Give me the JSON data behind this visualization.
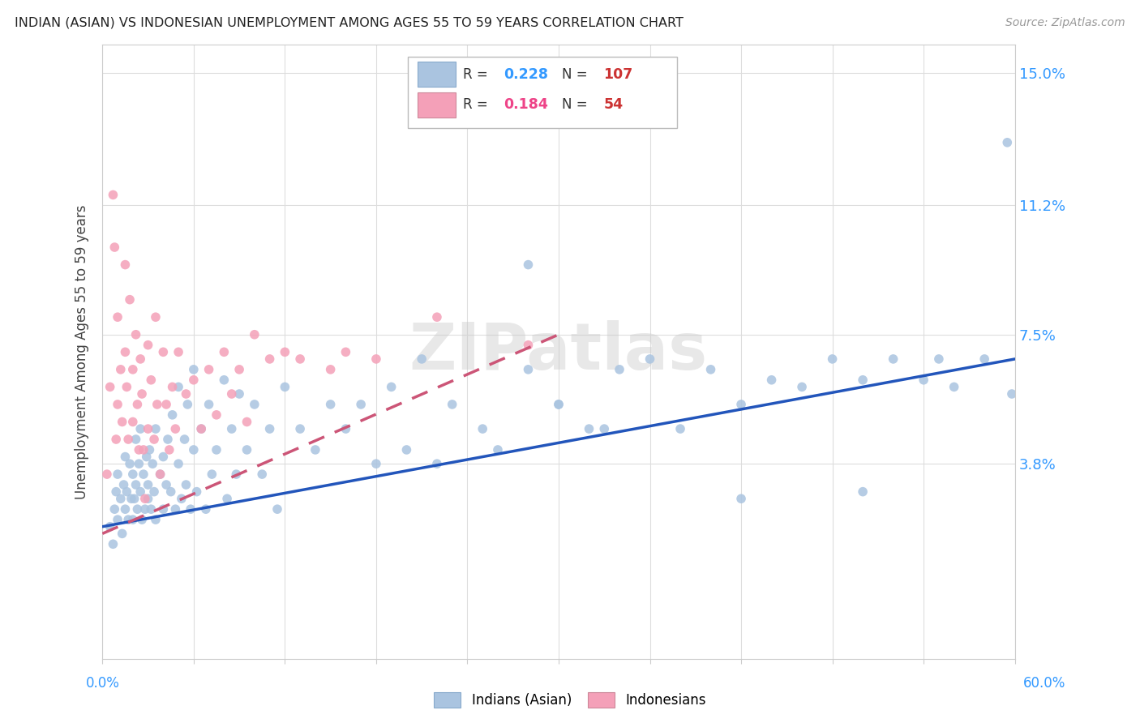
{
  "title": "INDIAN (ASIAN) VS INDONESIAN UNEMPLOYMENT AMONG AGES 55 TO 59 YEARS CORRELATION CHART",
  "source": "Source: ZipAtlas.com",
  "ylabel": "Unemployment Among Ages 55 to 59 years",
  "ytick_labels": [
    "15.0%",
    "11.2%",
    "7.5%",
    "3.8%"
  ],
  "ytick_values": [
    0.15,
    0.112,
    0.075,
    0.038
  ],
  "xlim": [
    0.0,
    0.6
  ],
  "ylim": [
    -0.018,
    0.158
  ],
  "indian_color": "#aac4e0",
  "indonesian_color": "#f4a0b8",
  "indian_line_color": "#2255bb",
  "indonesian_line_color": "#cc5577",
  "watermark": "ZIPatlas",
  "grid_color": "#dddddd",
  "background_color": "#ffffff",
  "indian_line_x": [
    0.0,
    0.6
  ],
  "indian_line_y": [
    0.02,
    0.068
  ],
  "indonesian_line_x": [
    0.0,
    0.3
  ],
  "indonesian_line_y": [
    0.018,
    0.075
  ],
  "indian_x": [
    0.005,
    0.007,
    0.008,
    0.009,
    0.01,
    0.01,
    0.012,
    0.013,
    0.014,
    0.015,
    0.015,
    0.016,
    0.017,
    0.018,
    0.019,
    0.02,
    0.02,
    0.021,
    0.022,
    0.022,
    0.023,
    0.024,
    0.025,
    0.025,
    0.026,
    0.027,
    0.028,
    0.029,
    0.03,
    0.03,
    0.031,
    0.032,
    0.033,
    0.034,
    0.035,
    0.035,
    0.038,
    0.04,
    0.04,
    0.042,
    0.043,
    0.045,
    0.046,
    0.048,
    0.05,
    0.05,
    0.052,
    0.054,
    0.055,
    0.056,
    0.058,
    0.06,
    0.06,
    0.062,
    0.065,
    0.068,
    0.07,
    0.072,
    0.075,
    0.08,
    0.082,
    0.085,
    0.088,
    0.09,
    0.095,
    0.1,
    0.105,
    0.11,
    0.115,
    0.12,
    0.13,
    0.14,
    0.15,
    0.16,
    0.17,
    0.18,
    0.19,
    0.2,
    0.21,
    0.22,
    0.23,
    0.25,
    0.26,
    0.28,
    0.3,
    0.32,
    0.34,
    0.36,
    0.38,
    0.4,
    0.42,
    0.44,
    0.46,
    0.48,
    0.5,
    0.52,
    0.54,
    0.56,
    0.58,
    0.595,
    0.598,
    0.3,
    0.28,
    0.33,
    0.5,
    0.42,
    0.55
  ],
  "indian_y": [
    0.02,
    0.015,
    0.025,
    0.03,
    0.022,
    0.035,
    0.028,
    0.018,
    0.032,
    0.025,
    0.04,
    0.03,
    0.022,
    0.038,
    0.028,
    0.035,
    0.022,
    0.028,
    0.032,
    0.045,
    0.025,
    0.038,
    0.03,
    0.048,
    0.022,
    0.035,
    0.025,
    0.04,
    0.032,
    0.028,
    0.042,
    0.025,
    0.038,
    0.03,
    0.048,
    0.022,
    0.035,
    0.04,
    0.025,
    0.032,
    0.045,
    0.03,
    0.052,
    0.025,
    0.038,
    0.06,
    0.028,
    0.045,
    0.032,
    0.055,
    0.025,
    0.042,
    0.065,
    0.03,
    0.048,
    0.025,
    0.055,
    0.035,
    0.042,
    0.062,
    0.028,
    0.048,
    0.035,
    0.058,
    0.042,
    0.055,
    0.035,
    0.048,
    0.025,
    0.06,
    0.048,
    0.042,
    0.055,
    0.048,
    0.055,
    0.038,
    0.06,
    0.042,
    0.068,
    0.038,
    0.055,
    0.048,
    0.042,
    0.095,
    0.055,
    0.048,
    0.065,
    0.068,
    0.048,
    0.065,
    0.055,
    0.062,
    0.06,
    0.068,
    0.062,
    0.068,
    0.062,
    0.06,
    0.068,
    0.13,
    0.058,
    0.055,
    0.065,
    0.048,
    0.03,
    0.028,
    0.068
  ],
  "indonesian_x": [
    0.003,
    0.005,
    0.007,
    0.008,
    0.009,
    0.01,
    0.01,
    0.012,
    0.013,
    0.015,
    0.015,
    0.016,
    0.017,
    0.018,
    0.02,
    0.02,
    0.022,
    0.023,
    0.024,
    0.025,
    0.026,
    0.027,
    0.028,
    0.03,
    0.03,
    0.032,
    0.034,
    0.035,
    0.036,
    0.038,
    0.04,
    0.042,
    0.044,
    0.046,
    0.048,
    0.05,
    0.055,
    0.06,
    0.065,
    0.07,
    0.075,
    0.08,
    0.085,
    0.09,
    0.095,
    0.1,
    0.11,
    0.12,
    0.13,
    0.15,
    0.16,
    0.18,
    0.22,
    0.28
  ],
  "indonesian_y": [
    0.035,
    0.06,
    0.115,
    0.1,
    0.045,
    0.08,
    0.055,
    0.065,
    0.05,
    0.095,
    0.07,
    0.06,
    0.045,
    0.085,
    0.065,
    0.05,
    0.075,
    0.055,
    0.042,
    0.068,
    0.058,
    0.042,
    0.028,
    0.072,
    0.048,
    0.062,
    0.045,
    0.08,
    0.055,
    0.035,
    0.07,
    0.055,
    0.042,
    0.06,
    0.048,
    0.07,
    0.058,
    0.062,
    0.048,
    0.065,
    0.052,
    0.07,
    0.058,
    0.065,
    0.05,
    0.075,
    0.068,
    0.07,
    0.068,
    0.065,
    0.07,
    0.068,
    0.08,
    0.072
  ],
  "indonesian_last_point": [
    0.005,
    0.018
  ]
}
